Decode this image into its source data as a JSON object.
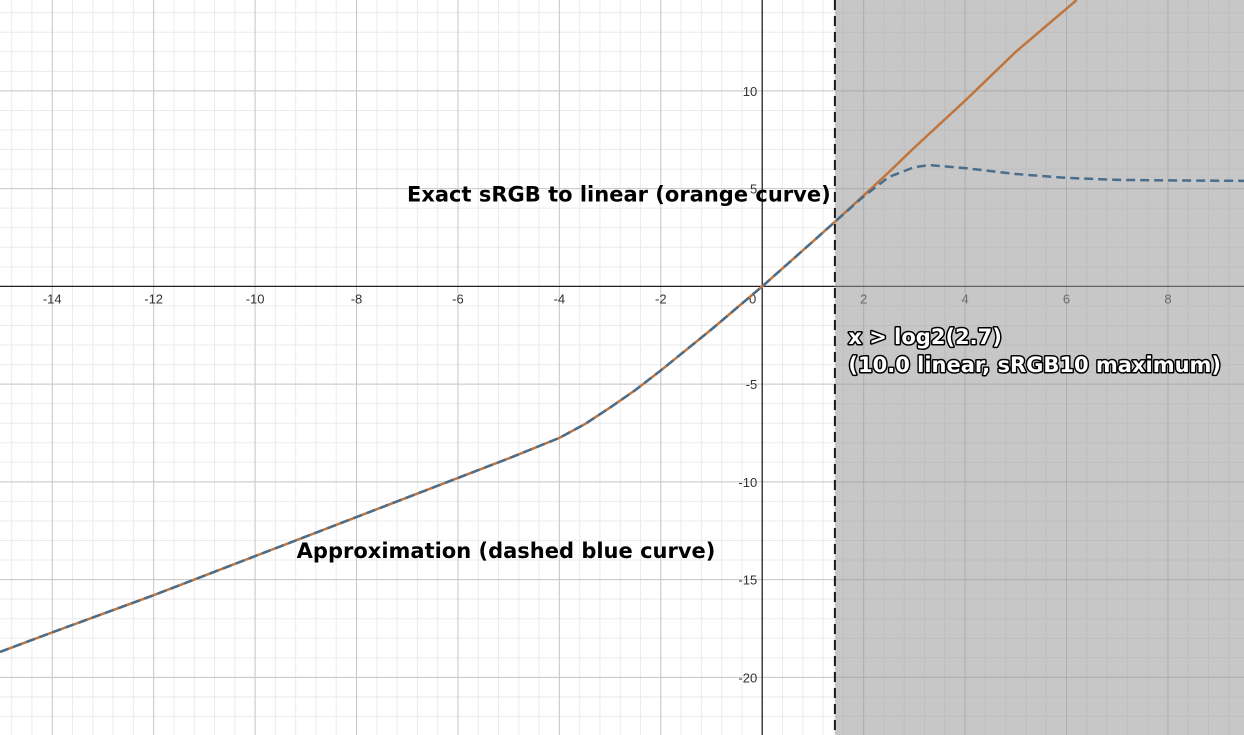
{
  "chart_data": {
    "type": "line",
    "title": "",
    "xlabel": "",
    "ylabel": "",
    "xlim": [
      -15.03,
      9.5
    ],
    "ylim": [
      -22.95,
      14.65
    ],
    "grid": true,
    "minor_grid": true,
    "x_ticks": [
      -14,
      -12,
      -10,
      -8,
      -6,
      -4,
      -2,
      2,
      4,
      6,
      8
    ],
    "x_tick_labels": [
      "-14",
      "-12",
      "-10",
      "-8",
      "-6",
      "-4",
      "-2",
      "2",
      "4",
      "6",
      "8"
    ],
    "y_ticks": [
      -20,
      -15,
      -10,
      -5,
      5,
      10
    ],
    "y_tick_labels": [
      "-20",
      "-15",
      "-10",
      "-5",
      "5",
      "10"
    ],
    "origin_label": "0",
    "shaded_region": {
      "x_min": 1.433,
      "color": "#999999",
      "boundary_style": "dashed"
    },
    "series": [
      {
        "style": "solid",
        "color": "#c0753e",
        "points": [
          [
            -15.03,
            -18.7
          ],
          [
            -14,
            -17.7
          ],
          [
            -12,
            -15.8
          ],
          [
            -10,
            -13.8
          ],
          [
            -8,
            -11.8
          ],
          [
            -6,
            -9.8
          ],
          [
            -5,
            -8.8
          ],
          [
            -4,
            -7.75
          ],
          [
            -3.5,
            -7.05
          ],
          [
            -3,
            -6.2
          ],
          [
            -2.5,
            -5.3
          ],
          [
            -2,
            -4.3
          ],
          [
            -1.5,
            -3.25
          ],
          [
            -1,
            -2.2
          ],
          [
            -0.5,
            -1.1
          ],
          [
            0,
            0
          ],
          [
            0.5,
            1.15
          ],
          [
            1,
            2.3
          ],
          [
            1.433,
            3.3
          ],
          [
            2,
            4.65
          ],
          [
            2.5,
            5.85
          ],
          [
            3,
            7.1
          ],
          [
            4,
            9.5
          ],
          [
            5,
            12.0
          ],
          [
            6.2,
            14.65
          ]
        ]
      },
      {
        "style": "dashed",
        "color": "#4a6d8c",
        "points": [
          [
            -15.03,
            -18.7
          ],
          [
            -14,
            -17.7
          ],
          [
            -12,
            -15.8
          ],
          [
            -10,
            -13.8
          ],
          [
            -8,
            -11.8
          ],
          [
            -6,
            -9.8
          ],
          [
            -5,
            -8.8
          ],
          [
            -4,
            -7.75
          ],
          [
            -3.5,
            -7.05
          ],
          [
            -3,
            -6.2
          ],
          [
            -2.5,
            -5.3
          ],
          [
            -2,
            -4.3
          ],
          [
            -1.5,
            -3.25
          ],
          [
            -1,
            -2.2
          ],
          [
            -0.5,
            -1.1
          ],
          [
            0,
            0
          ],
          [
            0.5,
            1.15
          ],
          [
            1,
            2.3
          ],
          [
            1.433,
            3.3
          ],
          [
            2,
            4.6
          ],
          [
            2.5,
            5.6
          ],
          [
            3,
            6.1
          ],
          [
            3.3,
            6.2
          ],
          [
            4,
            6.05
          ],
          [
            5,
            5.75
          ],
          [
            6,
            5.55
          ],
          [
            7,
            5.45
          ],
          [
            8,
            5.42
          ],
          [
            9.5,
            5.4
          ]
        ]
      }
    ],
    "annotations": [
      {
        "lines": [
          "Exact sRGB to linear (orange curve)"
        ],
        "x": 1.35,
        "y": 4.35,
        "anchor": "end",
        "color": "#000000"
      },
      {
        "lines": [
          "Approximation (dashed blue curve)"
        ],
        "x": -9.18,
        "y": -13.9,
        "anchor": "start",
        "color": "#000000"
      },
      {
        "lines": [
          "x > log2(2.7)",
          "(10.0 linear, sRGB10 maximum)"
        ],
        "x": 1.7,
        "y": -2.95,
        "anchor": "start",
        "color": "#ffffff"
      }
    ]
  }
}
